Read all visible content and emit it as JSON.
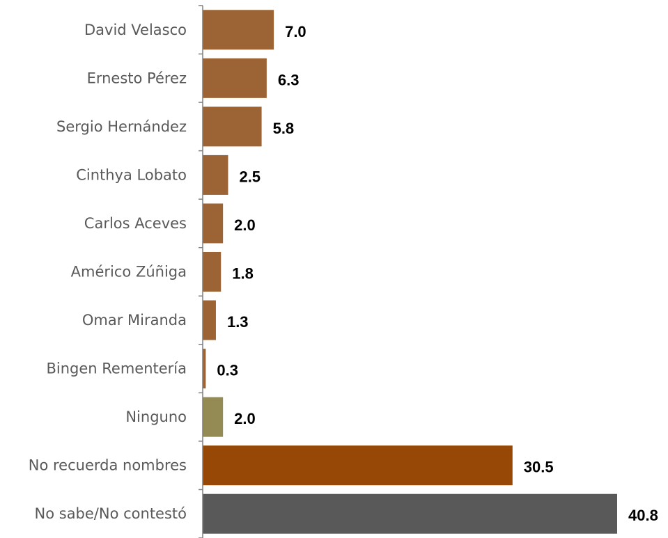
{
  "chart_data": {
    "type": "bar",
    "orientation": "horizontal",
    "title": "",
    "xlabel": "",
    "ylabel": "",
    "grid": false,
    "xlim": [
      0,
      40.8
    ],
    "categories": [
      "David Velasco",
      "Ernesto Pérez",
      "Sergio Hernández",
      "Cinthya Lobato",
      "Carlos Aceves",
      "Américo Zúñiga",
      "Omar Miranda",
      "Bingen Rementería",
      "Ninguno",
      "No recuerda nombres",
      "No sabe/No contestó"
    ],
    "values": [
      7.0,
      6.3,
      5.8,
      2.5,
      2.0,
      1.8,
      1.3,
      0.3,
      2.0,
      30.5,
      40.8
    ],
    "value_labels": [
      "7.0",
      "6.3",
      "5.8",
      "2.5",
      "2.0",
      "1.8",
      "1.3",
      "0.3",
      "2.0",
      "30.5",
      "40.8"
    ],
    "bar_colors": [
      "#9C6434",
      "#9C6434",
      "#9C6434",
      "#9C6434",
      "#9C6434",
      "#9C6434",
      "#9C6434",
      "#9C6434",
      "#948A54",
      "#974706",
      "#595959"
    ],
    "axis_color": "#7F7F7F"
  }
}
